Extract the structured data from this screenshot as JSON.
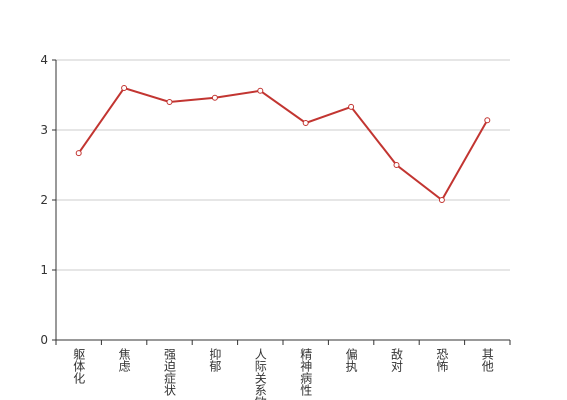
{
  "chart_data": {
    "type": "line",
    "categories": [
      "躯体化",
      "焦虑",
      "强迫症状",
      "抑郁",
      "人际关系敏感",
      "精神病性",
      "偏执",
      "敌对",
      "恐怖",
      "其他"
    ],
    "series": [
      {
        "color": "#c23531",
        "values": [
          2.67,
          3.6,
          3.4,
          3.46,
          3.56,
          3.1,
          3.33,
          2.5,
          2.0,
          3.14
        ]
      }
    ],
    "ylim": [
      0,
      4
    ],
    "yticks": [
      0,
      1,
      2,
      3,
      4
    ],
    "grid": true
  }
}
